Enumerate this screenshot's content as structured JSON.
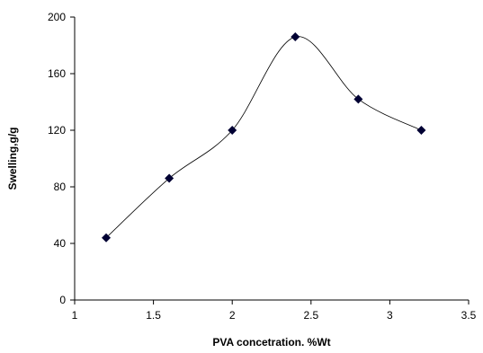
{
  "chart_data": {
    "type": "line",
    "xlabel": "PVA concetration. %Wt",
    "ylabel": "Swelling,g/g",
    "xlim": [
      1,
      3.5
    ],
    "ylim": [
      0,
      200
    ],
    "xticks": [
      1,
      1.5,
      2,
      2.5,
      3,
      3.5
    ],
    "yticks": [
      0,
      40,
      80,
      120,
      160,
      200
    ],
    "xtick_labels": [
      "1",
      "1.5",
      "2",
      "2.5",
      "3",
      "3.5"
    ],
    "ytick_labels": [
      "0",
      "40",
      "80",
      "120",
      "160",
      "200"
    ],
    "grid": false,
    "smooth": true,
    "marker": "diamond",
    "colors": {
      "line": "#000000",
      "marker": "#000033"
    },
    "series": [
      {
        "x": [
          1.2,
          1.6,
          2.0,
          2.4,
          2.8,
          3.2
        ],
        "y": [
          44,
          86,
          120,
          186,
          142,
          120
        ]
      }
    ]
  }
}
